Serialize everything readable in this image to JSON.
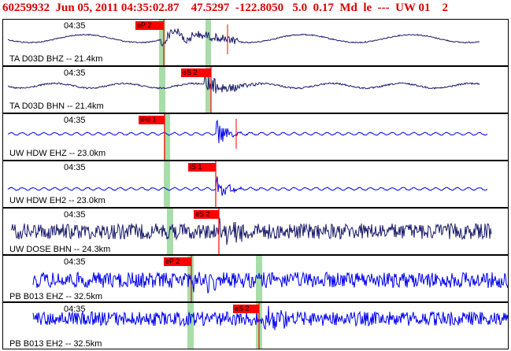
{
  "header": {
    "text": "60259932  Jun 05, 2011 04:35:02.87    47.5297  -122.8050   5.0  0.17  Md  le  ---  UW 01    2"
  },
  "colors": {
    "header": "#dd0000",
    "trace_dark": "#1a1a6a",
    "trace_blue": "#0000ee",
    "pick_red": "#ff0000",
    "window_green": "#a8dca8"
  },
  "panels": [
    {
      "time": "04:35",
      "station": "TA D03D BHZ -- 21.4km",
      "pick": "eP 2",
      "color": "dark"
    },
    {
      "time": "04:35",
      "station": "TA D03D BHN -- 21.4km",
      "pick": "eS 2",
      "color": "dark"
    },
    {
      "time": "04:35",
      "station": "UW HDW EHZ -- 23.0km",
      "pick": "iPd 1",
      "color": "blue"
    },
    {
      "time": "04:35",
      "station": "UW HDW EH2 -- 23.0km",
      "pick": "iS 1",
      "color": "blue"
    },
    {
      "time": "04:35",
      "station": "UW DOSE BHN -- 24.3km",
      "pick": "eS 2",
      "color": "dark"
    },
    {
      "time": "04:35",
      "station": "PB B013 EHZ -- 32.5km",
      "pick": "eP 2",
      "color": "blue"
    },
    {
      "time": "04:35",
      "station": "PB B013 EH2 -- 32.5km",
      "pick": "eS 2",
      "color": "blue"
    }
  ]
}
